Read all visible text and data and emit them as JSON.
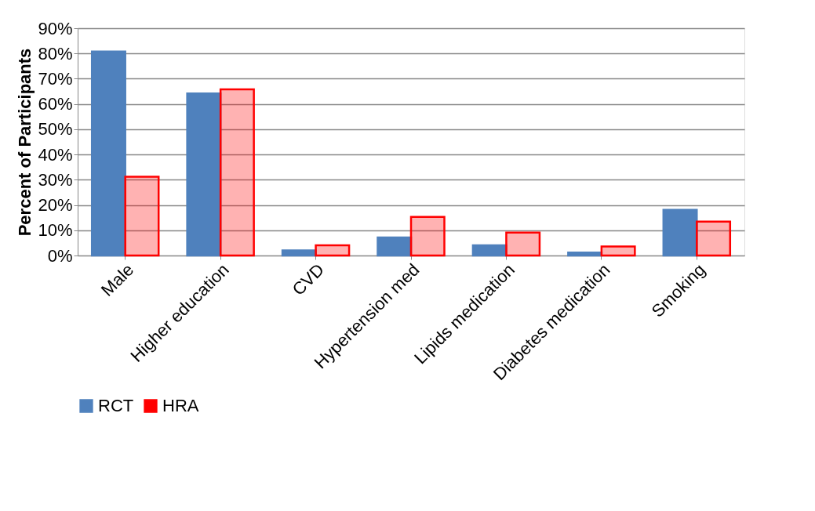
{
  "chart_data": {
    "type": "bar",
    "ylabel": "Percent of Participants",
    "categories": [
      "Male",
      "Higher education",
      "CVD",
      "Hypertension med",
      "Lipids medication",
      "Diabetes medication",
      "Smoking"
    ],
    "series": [
      {
        "name": "RCT",
        "color": "#4f81bd",
        "values": [
          80.8,
          64.2,
          2.0,
          7.1,
          4.0,
          1.2,
          18.1
        ]
      },
      {
        "name": "HRA",
        "color": "#ff0000",
        "values": [
          31.2,
          65.8,
          4.0,
          15.3,
          9.1,
          3.6,
          13.4
        ]
      }
    ],
    "ylim": [
      0,
      90
    ],
    "yticks": [
      {
        "value": 0,
        "label": "0%"
      },
      {
        "value": 10,
        "label": "10%"
      },
      {
        "value": 20,
        "label": "20%"
      },
      {
        "value": 30,
        "label": "30%"
      },
      {
        "value": 40,
        "label": "40%"
      },
      {
        "value": 50,
        "label": "50%"
      },
      {
        "value": 60,
        "label": "60%"
      },
      {
        "value": 70,
        "label": "70%"
      },
      {
        "value": 80,
        "label": "80%"
      },
      {
        "value": 90,
        "label": "90%"
      }
    ],
    "grid": "y",
    "legend": "bottom"
  }
}
